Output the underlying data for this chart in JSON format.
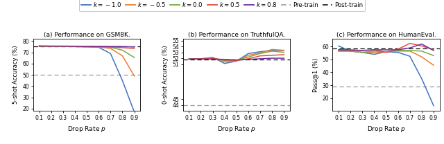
{
  "x": [
    0.1,
    0.2,
    0.3,
    0.4,
    0.5,
    0.6,
    0.7,
    0.8,
    0.9
  ],
  "gsm8k": {
    "k_neg1": [
      75.5,
      75.4,
      75.3,
      75.1,
      74.9,
      74.5,
      69.0,
      45.0,
      17.0
    ],
    "k_neg05": [
      75.5,
      75.4,
      75.3,
      75.2,
      75.0,
      74.8,
      73.5,
      67.0,
      49.0
    ],
    "k_0": [
      75.5,
      75.4,
      75.3,
      75.2,
      75.1,
      75.0,
      74.5,
      72.0,
      65.5
    ],
    "k_05": [
      75.6,
      75.5,
      75.4,
      75.3,
      75.2,
      75.1,
      74.8,
      74.2,
      73.5
    ],
    "k_08": [
      75.7,
      75.6,
      75.6,
      75.5,
      75.4,
      75.4,
      75.3,
      75.2,
      74.8
    ],
    "pretrain": 50.0,
    "posttrain": 75.5,
    "ylabel": "5-shot Accuracy (%)",
    "ylim": [
      18,
      82
    ],
    "yticks": [
      20,
      30,
      40,
      50,
      60,
      70,
      80
    ],
    "title": "(a) Performance on GSM8K."
  },
  "truthfulqa": {
    "k_neg1": [
      51.85,
      51.9,
      52.15,
      51.1,
      51.5,
      52.8,
      53.1,
      53.35,
      53.3
    ],
    "k_neg05": [
      51.85,
      51.9,
      52.1,
      51.4,
      51.5,
      52.5,
      52.9,
      53.5,
      53.35
    ],
    "k_0": [
      51.85,
      51.9,
      52.0,
      51.6,
      51.6,
      52.2,
      52.8,
      53.2,
      53.0
    ],
    "k_05": [
      51.85,
      51.9,
      51.95,
      51.7,
      51.6,
      51.9,
      52.4,
      52.5,
      52.6
    ],
    "k_08": [
      51.85,
      51.85,
      51.85,
      51.8,
      51.7,
      51.8,
      51.9,
      52.0,
      52.0
    ],
    "pretrain": 44.0,
    "posttrain": 51.72,
    "ylabel": "0-shot Accuracy (%)",
    "ylim": [
      43.0,
      55.3
    ],
    "yticks": [
      44,
      45,
      51,
      52,
      53,
      54,
      55
    ],
    "title": "(b) Performance on TruthfulQA."
  },
  "humaneval": {
    "k_neg1": [
      60.5,
      56.5,
      55.5,
      54.0,
      56.0,
      55.5,
      52.5,
      35.0,
      14.0
    ],
    "k_neg05": [
      56.5,
      56.5,
      55.5,
      55.5,
      56.0,
      56.5,
      56.5,
      52.0,
      45.5
    ],
    "k_0": [
      56.5,
      56.5,
      55.5,
      56.5,
      56.0,
      57.0,
      57.0,
      56.5,
      53.0
    ],
    "k_05": [
      57.5,
      57.0,
      57.0,
      57.5,
      55.5,
      58.0,
      62.5,
      60.5,
      57.5
    ],
    "k_08": [
      57.5,
      57.5,
      57.0,
      57.5,
      57.5,
      57.5,
      59.0,
      62.0,
      57.0
    ],
    "pretrain": 29.0,
    "posttrain": 58.5,
    "ylabel": "Pass@1 (%)",
    "ylim": [
      10,
      66
    ],
    "yticks": [
      20,
      30,
      40,
      50,
      60
    ],
    "title": "(c) Performance on HumanEval."
  },
  "colors": {
    "k_neg1": "#4472c4",
    "k_neg05": "#ed7d31",
    "k_0": "#70ad47",
    "k_05": "#e74c3c",
    "k_08": "#7030a0"
  },
  "xlabel": "Drop Rate $p$",
  "lw": 1.1
}
